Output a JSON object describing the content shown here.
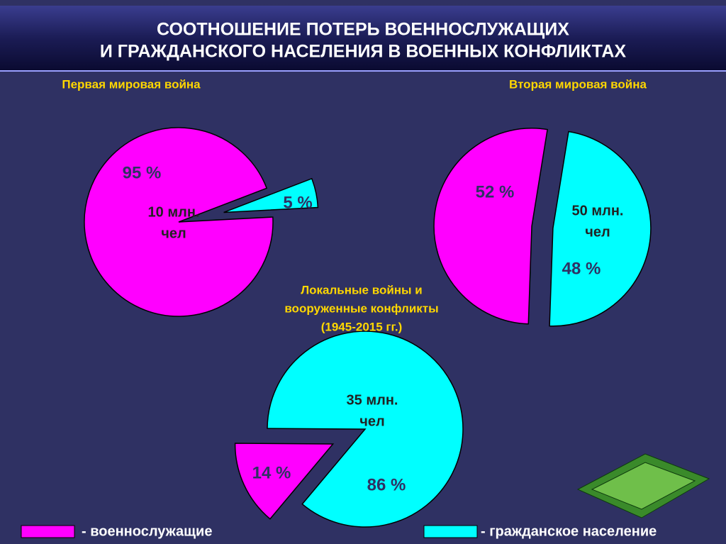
{
  "title": [
    "СООТНОШЕНИЕ ПОТЕРЬ ВОЕННОСЛУЖАЩИХ",
    "И ГРАЖДАНСКОГО НАСЕЛЕНИЯ В ВОЕННЫХ КОНФЛИКТАХ"
  ],
  "chart_data": [
    {
      "type": "pie",
      "title": [
        "Первая мировая война"
      ],
      "center_label": [
        "10 млн.",
        "чел"
      ],
      "categories": [
        "- военнослужащие",
        "- гражданское население"
      ],
      "colors": [
        "#ff00ff",
        "#00ffff"
      ],
      "values": [
        95,
        5
      ],
      "value_labels": [
        "95 %",
        "5 %"
      ]
    },
    {
      "type": "pie",
      "title": [
        "Вторая мировая война"
      ],
      "center_label": [
        "50 млн.",
        "чел"
      ],
      "categories": [
        "- военнослужащие",
        "- гражданское население"
      ],
      "colors": [
        "#ff00ff",
        "#00ffff"
      ],
      "values": [
        52,
        48
      ],
      "value_labels": [
        "52 %",
        "48 %"
      ]
    },
    {
      "type": "pie",
      "title": [
        "Локальные войны и",
        "вооруженные конфликты",
        "(1945-2015 гг.)"
      ],
      "center_label": [
        "35 млн.",
        "чел"
      ],
      "categories": [
        "- военнослужащие",
        "- гражданское население"
      ],
      "colors": [
        "#ff00ff",
        "#00ffff"
      ],
      "values": [
        14,
        86
      ],
      "value_labels": [
        "14 %",
        "86 %"
      ]
    }
  ]
}
